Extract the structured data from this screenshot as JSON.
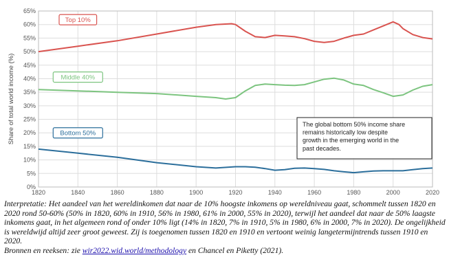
{
  "chart_data": {
    "type": "line",
    "ylabel": "Share of total world income (%)",
    "xlim": [
      1820,
      2020
    ],
    "ylim": [
      0,
      65
    ],
    "x_ticks": [
      "1820",
      "1840",
      "1860",
      "1880",
      "1900",
      "1920",
      "1940",
      "1960",
      "1980",
      "2000",
      "2020"
    ],
    "y_ticks": [
      "0%",
      "5%",
      "10%",
      "15%",
      "20%",
      "25%",
      "30%",
      "35%",
      "40%",
      "45%",
      "50%",
      "55%",
      "60%",
      "65%"
    ],
    "grid": true,
    "series": [
      {
        "name": "Top 10%",
        "color": "#d9534f",
        "x": [
          1820,
          1840,
          1860,
          1880,
          1900,
          1910,
          1918,
          1920,
          1925,
          1930,
          1935,
          1940,
          1945,
          1950,
          1955,
          1960,
          1965,
          1970,
          1975,
          1980,
          1985,
          1990,
          1995,
          2000,
          2003,
          2005,
          2010,
          2015,
          2020
        ],
        "y": [
          50,
          52,
          54,
          56.5,
          59,
          60,
          60.3,
          60,
          57.5,
          55.5,
          55.2,
          56,
          55.8,
          55.5,
          54.8,
          53.8,
          53.4,
          53.8,
          55,
          56,
          56.5,
          58,
          59.5,
          61,
          60,
          58.5,
          56.3,
          55.2,
          54.7
        ]
      },
      {
        "name": "Middle 40%",
        "color": "#7cc47f",
        "x": [
          1820,
          1840,
          1860,
          1880,
          1900,
          1910,
          1915,
          1920,
          1925,
          1930,
          1935,
          1940,
          1945,
          1950,
          1955,
          1960,
          1965,
          1970,
          1975,
          1980,
          1985,
          1990,
          1995,
          2000,
          2005,
          2010,
          2015,
          2020
        ],
        "y": [
          36,
          35.5,
          35,
          34.5,
          33.5,
          33,
          32.5,
          33,
          35.5,
          37.5,
          38,
          37.8,
          37.6,
          37.5,
          37.8,
          38.8,
          39.8,
          40.2,
          39.5,
          38,
          37.5,
          36,
          34.8,
          33.5,
          34,
          35.8,
          37.2,
          37.8
        ]
      },
      {
        "name": "Bottom 50%",
        "color": "#2b6e9b",
        "x": [
          1820,
          1840,
          1860,
          1880,
          1900,
          1910,
          1920,
          1925,
          1930,
          1935,
          1940,
          1945,
          1950,
          1955,
          1960,
          1965,
          1970,
          1975,
          1980,
          1985,
          1990,
          1995,
          2000,
          2005,
          2010,
          2015,
          2020
        ],
        "y": [
          14,
          12.5,
          11,
          9,
          7.5,
          7,
          7.5,
          7.5,
          7.3,
          6.8,
          6.2,
          6.4,
          6.9,
          7,
          6.8,
          6.5,
          6,
          5.6,
          5.3,
          5.6,
          5.9,
          6,
          6,
          6,
          6.4,
          6.8,
          7
        ]
      }
    ],
    "annotation": "The global bottom 50% income share remains historically low despite growth in the emerging world in the past decades."
  },
  "caption": {
    "interpretation": "Interpretatie: Het aandeel van het wereldinkomen dat naar de 10% hoogste inkomens op wereldniveau gaat, schommelt tussen 1820 en 2020 rond 50-60% (50% in 1820, 60% in 1910, 56% in 1980, 61% in 2000, 55% in 2020), terwijl het aandeel dat naar de 50% laagste inkomens gaat, in het algemeen rond of onder 10% ligt (14% in 1820, 7% in 1910, 5% in 1980, 6% in 2000, 7% in 2020). De ongelijkheid is wereldwijd altijd zeer groot geweest. Zij is toegenomen tussen 1820 en 1910 en vertoont weinig langetermijntrends tussen 1910 en 2020.",
    "sources_prefix": "Bronnen en reeksen: zie ",
    "sources_link": "wir2022.wid.world/methodology",
    "sources_suffix": " en Chancel en Piketty (2021)."
  }
}
